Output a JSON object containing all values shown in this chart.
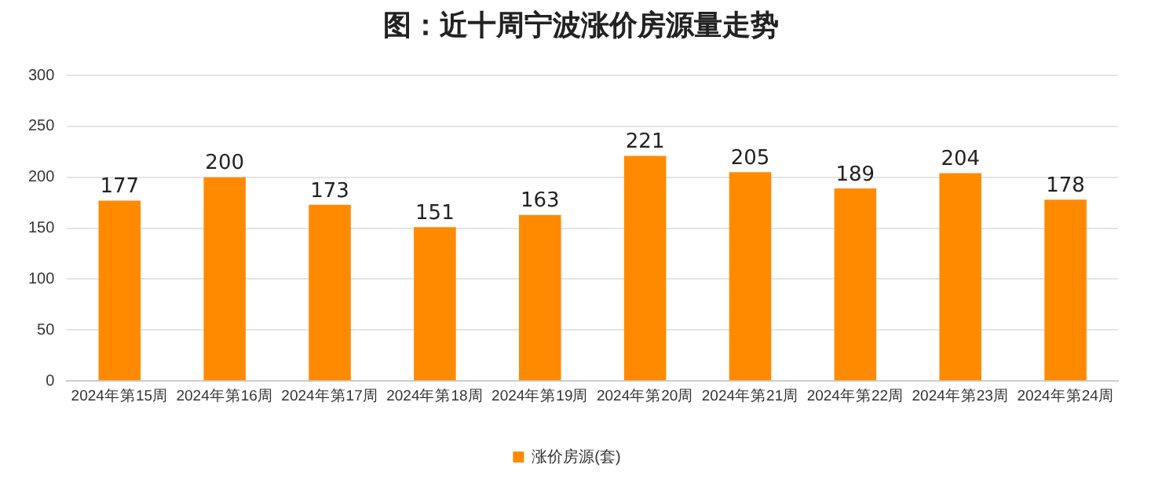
{
  "chart_data": {
    "type": "bar",
    "title": "图：近十周宁波涨价房源量走势",
    "categories": [
      "2024年第15周",
      "2024年第16周",
      "2024年第17周",
      "2024年第18周",
      "2024年第19周",
      "2024年第20周",
      "2024年第21周",
      "2024年第22周",
      "2024年第23周",
      "2024年第24周"
    ],
    "series": [
      {
        "name": "涨价房源(套)",
        "color": "#ff8a00",
        "values": [
          177,
          200,
          173,
          151,
          163,
          221,
          205,
          189,
          204,
          178
        ]
      }
    ],
    "ylim": [
      0,
      300
    ],
    "yticks": [
      0,
      50,
      100,
      150,
      200,
      250,
      300
    ],
    "grid": "y",
    "legend": "bottom",
    "data_labels": true
  }
}
